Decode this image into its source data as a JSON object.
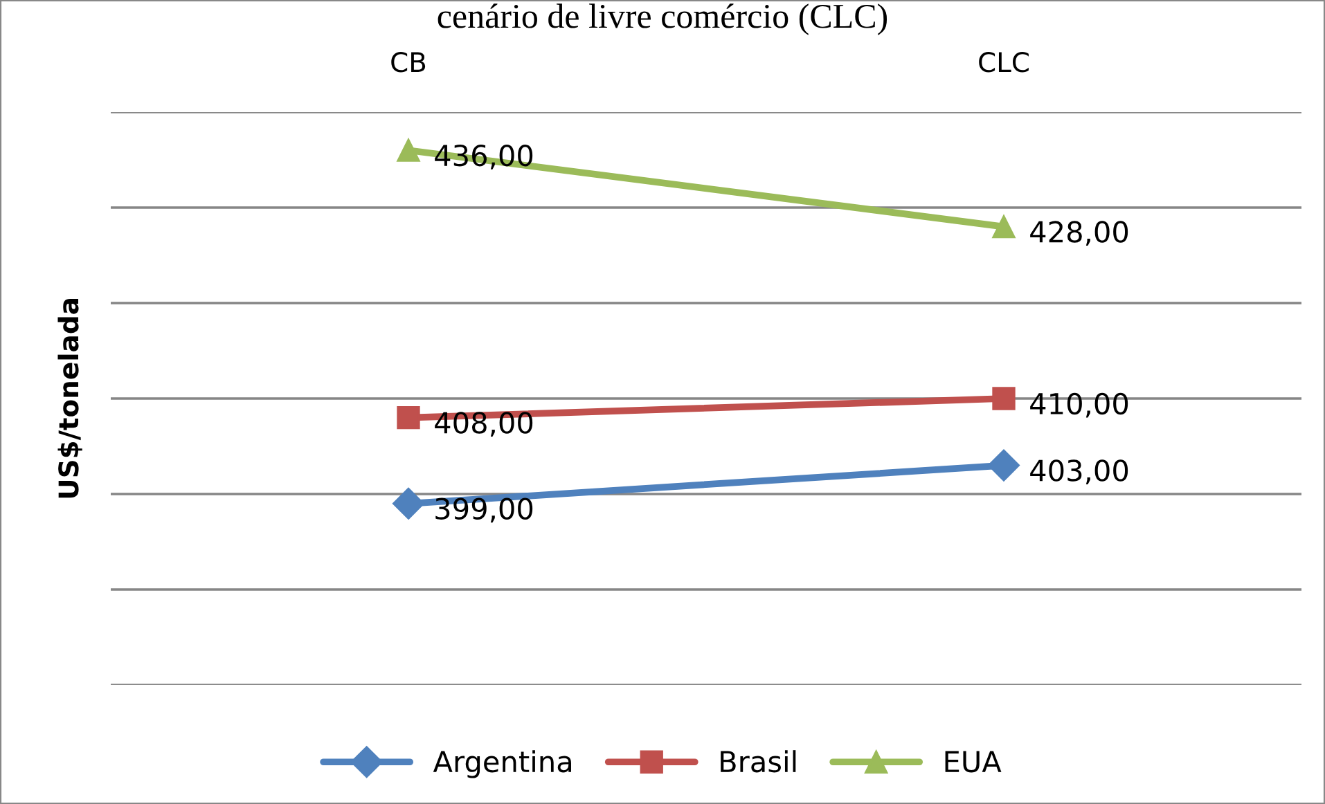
{
  "chart_data": {
    "type": "line",
    "title": "cenário de livre comércio (CLC)",
    "ylabel": "US$/tonelada",
    "categories": [
      "CB",
      "CLC"
    ],
    "series": [
      {
        "name": "Argentina",
        "color": "#4f81bd",
        "marker": "diamond",
        "values": [
          399,
          403
        ],
        "value_labels": [
          "399,00",
          "403,00"
        ]
      },
      {
        "name": "Brasil",
        "color": "#c0504d",
        "marker": "square",
        "values": [
          408,
          410
        ],
        "value_labels": [
          "408,00",
          "410,00"
        ]
      },
      {
        "name": "EUA",
        "color": "#9bbb59",
        "marker": "triangle",
        "values": [
          436,
          428
        ],
        "value_labels": [
          "436,00",
          "428,00"
        ]
      }
    ],
    "ylim": [
      380,
      440
    ],
    "yticks": [
      {
        "value": 380,
        "label": null
      },
      {
        "value": 390,
        "label": null
      },
      {
        "value": 400,
        "label": null
      },
      {
        "value": 410,
        "label": null
      },
      {
        "value": 420,
        "label": null
      },
      {
        "value": 430,
        "label": null
      },
      {
        "value": 440,
        "label": null
      }
    ],
    "grid": "y",
    "legend": "bottom",
    "tick_labels": "x",
    "line_style": "solid"
  }
}
